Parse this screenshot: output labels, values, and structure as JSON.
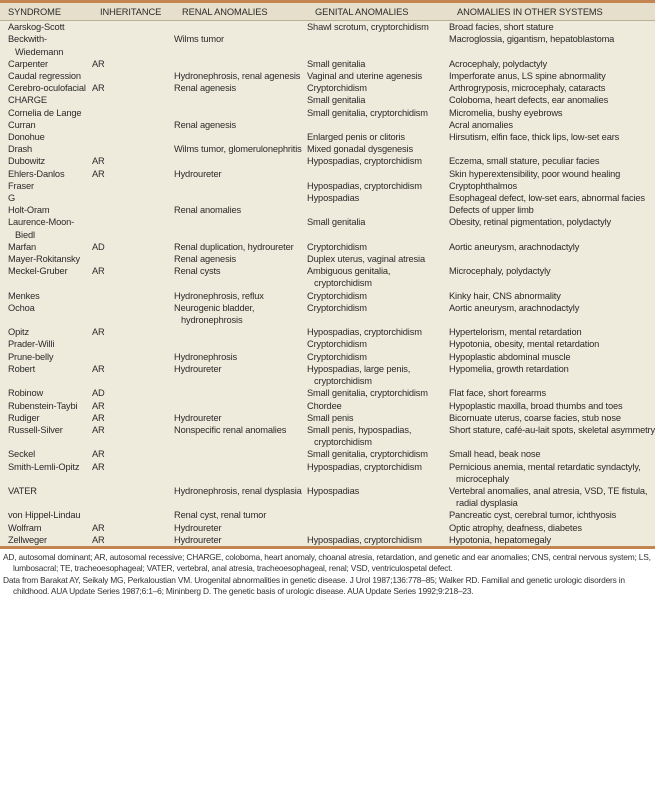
{
  "table": {
    "headers": [
      "SYNDROME",
      "INHERITANCE",
      "RENAL ANOMALIES",
      "GENITAL ANOMALIES",
      "ANOMALIES IN OTHER SYSTEMS"
    ],
    "rows": [
      [
        "Aarskog-Scott",
        "",
        "",
        "Shawl scrotum, cryptorchidism",
        "Broad facies, short stature"
      ],
      [
        "Beckwith-Wiedemann",
        "",
        "Wilms tumor",
        "",
        "Macroglossia, gigantism, hepatoblastoma"
      ],
      [
        "Carpenter",
        "AR",
        "",
        "Small genitalia",
        "Acrocephaly, polydactyly"
      ],
      [
        "Caudal regression",
        "",
        "Hydronephrosis, renal agenesis",
        "Vaginal and uterine agenesis",
        "Imperforate anus, LS spine abnormality"
      ],
      [
        "Cerebro-oculofacial",
        "AR",
        "Renal agenesis",
        "Cryptorchidism",
        "Arthrogryposis, microcephaly, cataracts"
      ],
      [
        "CHARGE",
        "",
        "",
        "Small genitalia",
        "Coloboma, heart defects, ear anomalies"
      ],
      [
        "Cornelia de Lange",
        "",
        "",
        "Small genitalia, cryptorchidism",
        "Micromelia, bushy eyebrows"
      ],
      [
        "Curran",
        "",
        "Renal agenesis",
        "",
        "Acral anomalies"
      ],
      [
        "Donohue",
        "",
        "",
        "Enlarged penis or clitoris",
        "Hirsutism, elfin face, thick lips, low-set ears"
      ],
      [
        "Drash",
        "",
        "Wilms tumor, glomerulonephritis",
        "Mixed gonadal dysgenesis",
        ""
      ],
      [
        "Dubowitz",
        "AR",
        "",
        "Hypospadias, cryptorchidism",
        "Eczema, small stature, peculiar facies"
      ],
      [
        "Ehlers-Danlos",
        "AR",
        "Hydroureter",
        "",
        "Skin hyperextensibility, poor wound healing"
      ],
      [
        "Fraser",
        "",
        "",
        "Hypospadias, cryptorchidism",
        "Cryptophthalmos"
      ],
      [
        "G",
        "",
        "",
        "Hypospadias",
        "Esophageal defect, low-set ears, abnormal facies"
      ],
      [
        "Holt-Oram",
        "",
        "Renal anomalies",
        "",
        "Defects of upper limb"
      ],
      [
        "Laurence-Moon-Biedl",
        "",
        "",
        "Small genitalia",
        "Obesity, retinal pigmentation, polydactyly"
      ],
      [
        "Marfan",
        "AD",
        "Renal duplication, hydroureter",
        "Cryptorchidism",
        "Aortic aneurysm, arachnodactyly"
      ],
      [
        "Mayer-Rokitansky",
        "",
        "Renal agenesis",
        "Duplex uterus, vaginal atresia",
        ""
      ],
      [
        "Meckel-Gruber",
        "AR",
        "Renal cysts",
        "Ambiguous genitalia, cryptorchidism",
        "Microcephaly, polydactyly"
      ],
      [
        "Menkes",
        "",
        "Hydronephrosis, reflux",
        "Cryptorchidism",
        "Kinky hair, CNS abnormality"
      ],
      [
        "Ochoa",
        "",
        "Neurogenic bladder, hydronephrosis",
        "Cryptorchidism",
        "Aortic aneurysm, arachnodactyly"
      ],
      [
        "Opitz",
        "AR",
        "",
        "Hypospadias, cryptorchidism",
        "Hypertelorism, mental retardation"
      ],
      [
        "Prader-Willi",
        "",
        "",
        "Cryptorchidism",
        "Hypotonia, obesity, mental retardation"
      ],
      [
        "Prune-belly",
        "",
        "Hydronephrosis",
        "Cryptorchidism",
        "Hypoplastic abdominal muscle"
      ],
      [
        "Robert",
        "AR",
        "Hydroureter",
        "Hypospadias, large penis, cryptorchidism",
        "Hypomelia, growth retardation"
      ],
      [
        "Robinow",
        "AD",
        "",
        "Small genitalia, cryptorchidism",
        "Flat face, short forearms"
      ],
      [
        "Rubenstein-Taybi",
        "AR",
        "",
        "Chordee",
        "Hypoplastic maxilla, broad thumbs and toes"
      ],
      [
        "Rudiger",
        "AR",
        "Hydroureter",
        "Small penis",
        "Bicornuate uterus, coarse facies, stub nose"
      ],
      [
        "Russell-Silver",
        "AR",
        "Nonspecific renal anomalies",
        "Small penis, hypospadias, cryptorchidism",
        "Short stature, café-au-lait spots, skeletal asymmetry"
      ],
      [
        "Seckel",
        "AR",
        "",
        "Small genitalia, cryptorchidism",
        "Small head, beak nose"
      ],
      [
        "Smith-Lemli-Opitz",
        "AR",
        "",
        "Hypospadias, cryptorchidism",
        "Pernicious anemia, mental retardatic syndactyly, microcephaly"
      ],
      [
        "VATER",
        "",
        "Hydronephrosis, renal dysplasia",
        "Hypospadias",
        "Vertebral anomalies, anal atresia, VSD, TE fistula, radial dysplasia"
      ],
      [
        "von Hippel-Lindau",
        "",
        "Renal cyst, renal tumor",
        "",
        "Pancreatic cyst, cerebral tumor, ichthyosis"
      ],
      [
        "Wolfram",
        "AR",
        "Hydroureter",
        "",
        "Optic atrophy, deafness, diabetes"
      ],
      [
        "Zellweger",
        "AR",
        "Hydroureter",
        "Hypospadias, cryptorchidism",
        "Hypotonia, hepatomegaly"
      ]
    ]
  },
  "footnotes": {
    "abbreviations": "AD, autosomal dominant; AR, autosomal recessive; CHARGE, coloboma, heart anomaly, choanal atresia, retardation, and genetic and ear anomalies; CNS, central nervous system; LS, lumbosacral; TE, tracheoesophageal; VATER, vertebral, anal atresia, tracheoesophageal, renal; VSD, ventriculospetal defect.",
    "source": "Data from Barakat AY, Seikaly MG, Perkaloustian VM. Urogenital abnormalities in genetic disease. J Urol 1987;136:778–85; Walker RD. Familial and genetic urologic disorders in childhood. AUA Update Series 1987;6:1–6; Mininberg D. The genetic basis of urologic disease. AUA Update Series 1992;9:218–23."
  },
  "colors": {
    "rule": "#c58550",
    "table_bg": "#efebdc",
    "header_bg": "#e5dfcb"
  }
}
